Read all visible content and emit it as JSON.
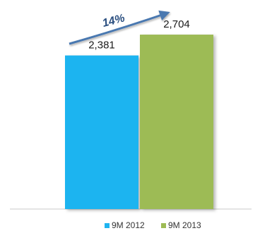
{
  "chart_data": {
    "type": "bar",
    "categories": [
      "9M 2012",
      "9M 2013"
    ],
    "values": [
      2381,
      2704
    ],
    "data_labels": [
      "2,381",
      "2,704"
    ],
    "colors": [
      "#1fb4f0",
      "#9dbb55"
    ],
    "ylim": [
      0,
      3000
    ],
    "grid": false,
    "legend": {
      "placement": "bottom",
      "entries": [
        "9M 2012",
        "9M 2013"
      ]
    },
    "annotation": {
      "text": "14%",
      "arrow_color": "#4a78b0"
    }
  }
}
